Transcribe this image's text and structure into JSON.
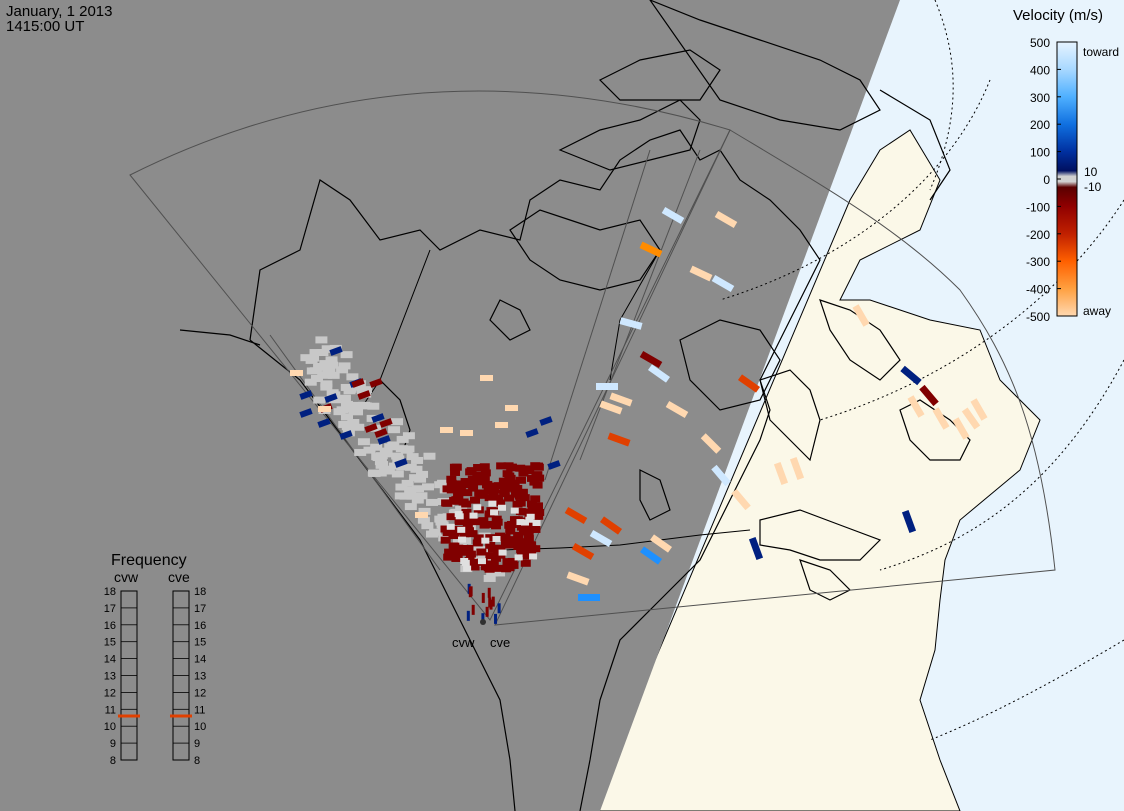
{
  "header": {
    "date": "January, 1 2013",
    "time": "1415:00 UT"
  },
  "legend": {
    "title": "Velocity (m/s)",
    "ticks": [
      "500",
      "400",
      "300",
      "200",
      "100",
      "0",
      "-100",
      "-200",
      "-300",
      "-400",
      "-500"
    ],
    "toward_label": "toward",
    "away_label": "away",
    "small_pos": "10",
    "small_neg": "-10",
    "colors": {
      "toward_light": "#cfe8ff",
      "toward_mid": "#1e90ff",
      "toward_dark": "#002080",
      "ground_scatter": "#c8c8c8",
      "away_dark": "#800000",
      "away_mid": "#e04000",
      "away_orange": "#ff8c00",
      "away_light": "#ffd8b0"
    }
  },
  "frequency": {
    "title": "Frequency",
    "radars": [
      "cvw",
      "cve"
    ],
    "scale": [
      "18",
      "17",
      "16",
      "15",
      "14",
      "13",
      "12",
      "11",
      "10",
      "9",
      "8"
    ],
    "cvw_mhz": 10.6,
    "cve_mhz": 10.6,
    "indicator_color": "#e04000"
  },
  "radars": {
    "west_label": "cvw",
    "east_label": "cve"
  },
  "map_colors": {
    "night": "#8c8c8c",
    "land_day": "#fbf8e8",
    "ocean_day": "#e8f4fd",
    "coast": "#000000",
    "fov": "#505050"
  }
}
